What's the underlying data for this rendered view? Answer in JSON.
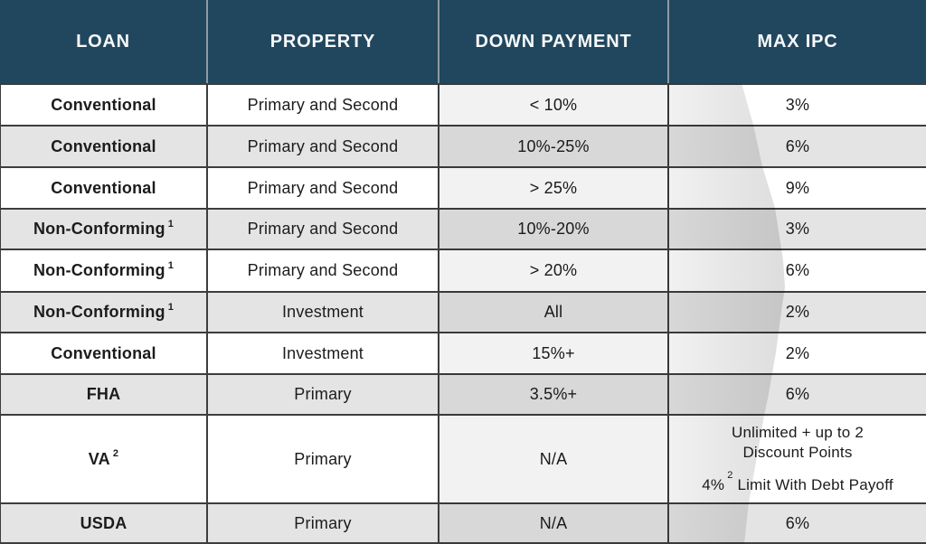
{
  "table": {
    "columns": [
      {
        "label": "LOAN"
      },
      {
        "label": "PROPERTY"
      },
      {
        "label": "DOWN PAYMENT"
      },
      {
        "label": "MAX IPC"
      }
    ],
    "rows": [
      {
        "loan": "Conventional",
        "property": "Primary and Second",
        "down_payment": "< 10%",
        "max_ipc": "3%"
      },
      {
        "loan": "Conventional",
        "property": "Primary and Second",
        "down_payment": "10%-25%",
        "max_ipc": "6%"
      },
      {
        "loan": "Conventional",
        "property": "Primary and Second",
        "down_payment": "> 25%",
        "max_ipc": "9%"
      },
      {
        "loan": "Non-Conforming",
        "loan_sup": "1",
        "property": "Primary and Second",
        "down_payment": "10%-20%",
        "max_ipc": "3%"
      },
      {
        "loan": "Non-Conforming",
        "loan_sup": "1",
        "property": "Primary and Second",
        "down_payment": "> 20%",
        "max_ipc": "6%"
      },
      {
        "loan": "Non-Conforming",
        "loan_sup": "1",
        "property": "Investment",
        "down_payment": "All",
        "max_ipc": "2%"
      },
      {
        "loan": "Conventional",
        "property": "Investment",
        "down_payment": "15%+",
        "max_ipc": "2%"
      },
      {
        "loan": "FHA",
        "property": "Primary",
        "down_payment": "3.5%+",
        "max_ipc": "6%"
      },
      {
        "loan": "VA",
        "loan_sup": "2",
        "property": "Primary",
        "down_payment": "N/A",
        "max_ipc_line1": "Unlimited + up to 2 Discount Points",
        "max_ipc_line2_pre": "4%",
        "max_ipc_line2_sup": "2",
        "max_ipc_line2_post": " Limit With Debt Payoff"
      },
      {
        "loan": "USDA",
        "property": "Primary",
        "down_payment": "N/A",
        "max_ipc": "6%"
      }
    ]
  },
  "colors": {
    "header_bg": "#21475e",
    "header_text": "#f7f9fa",
    "row_white": "#ffffff",
    "row_gray": "#e4e4e4",
    "border_dark": "#3d3d3d",
    "header_divider": "#8e9ba4"
  }
}
